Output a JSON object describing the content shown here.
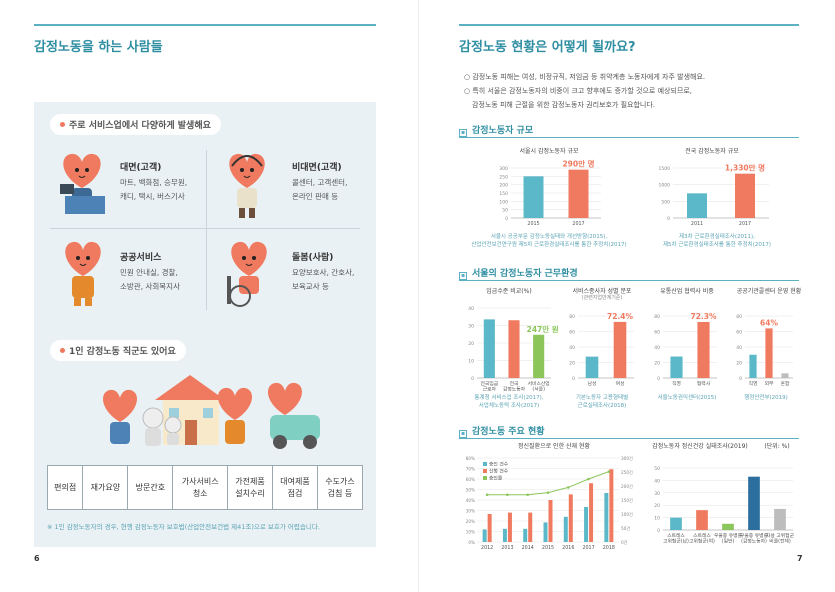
{
  "left": {
    "title": "감정노동을 하는 사람들",
    "pill1": "주로 서비스업에서 다양하게 발생해요",
    "pill2": "1인 감정노동 직군도 있어요",
    "categories": [
      {
        "title": "대면(고객)",
        "desc": "마트, 백화점, 승무원,\n캐디, 택시, 버스기사"
      },
      {
        "title": "비대면(고객)",
        "desc": "콜센터, 고객센터,\n온라인 판매 등"
      },
      {
        "title": "공공서비스",
        "desc": "민원 안내실, 경찰,\n소방관, 사회복지사"
      },
      {
        "title": "돌봄(사람)",
        "desc": "요양보호사, 간호사,\n보육교사 등"
      }
    ],
    "jobs": [
      "편의점",
      "재가요양",
      "방문간호",
      "가사서비스\n청소",
      "가전제품\n설치수리",
      "대여제품\n점검",
      "수도가스\n검침 등"
    ],
    "note": "※ 1인 감정노동자의 경우, 현행 감정노동자 보호법(산업안전보건법 제41조)으로 보호가 어렵습니다.",
    "page_number": "6"
  },
  "right": {
    "title": "감정노동 현황은 어떻게 될까요?",
    "bullets": [
      "감정노동 피해는 여성, 비정규직, 저임금 등 취약계층 노동자에게 자주 발생해요.",
      "특히 서울은 감정노동자의 비중이 크고 향후에도 증가할 것으로 예상되므로,",
      "감정노동 피해 근절을 위한 감정노동자 권리보호가 필요합니다."
    ],
    "sec1": "감정노동자 규모",
    "sec2": "서울의 감정노동자 근무환경",
    "sec3": "감정노동 주요 현황",
    "page_number": "7"
  },
  "chart_data": [
    {
      "type": "bar",
      "title": "서울시 감정노동자 규모",
      "categories": [
        "2015",
        "2017"
      ],
      "values": [
        250,
        290
      ],
      "ylim": [
        0,
        300
      ],
      "yticks": [
        "0",
        "50",
        "100",
        "150",
        "200",
        "250",
        "300"
      ],
      "annotation": "290만 명",
      "source": "서울시 공공부문 감정노동실태와 개선방향(2015),\n산업안전보건연구원 제5차 근로환경실태조사를 통한 추정치(2017)"
    },
    {
      "type": "bar",
      "title": "전국 감정노동자 규모",
      "categories": [
        "2011",
        "2017"
      ],
      "values": [
        740,
        1330
      ],
      "ylim": [
        0,
        1500
      ],
      "yticks": [
        "0",
        "500",
        "1000",
        "1500"
      ],
      "annotation": "1,330만 명",
      "source": "제3차 근로환경실태조사(2011),\n제5차 근로환경실태조사를 통한 추정치(2017)"
    },
    {
      "type": "bar",
      "title": "임금수준 비교(%)",
      "categories": [
        "전국임금\n근로자",
        "전국\n감정노동자",
        "서비스산업\n(서울)"
      ],
      "values": [
        335,
        330,
        247
      ],
      "ylim": [
        0,
        400
      ],
      "yticks": [
        "0",
        "10",
        "20",
        "30",
        "40"
      ],
      "annotation": "247만 원",
      "source": "통계청 서비스업 조사(2017),\n서업체노동력 조사(2017)"
    },
    {
      "type": "bar",
      "title": "서비스종사자 성별 분포",
      "subtitle": "(관련지업만계기준)",
      "categories": [
        "남성",
        "여성"
      ],
      "values": [
        27.6,
        72.4
      ],
      "ylim": [
        0,
        80
      ],
      "yticks": [
        "0",
        "20",
        "40",
        "60",
        "80"
      ],
      "annotation": "72.4%",
      "source": "기본노동자 고용형태별\n근로실태조사(2018)"
    },
    {
      "type": "bar",
      "title": "유통산업 협력사 비중",
      "categories": [
        "직영",
        "협력사"
      ],
      "values": [
        27.7,
        72.3
      ],
      "ylim": [
        0,
        80
      ],
      "yticks": [
        "0",
        "20",
        "40",
        "60",
        "80"
      ],
      "annotation": "72.3%",
      "source": "서울노동권익센터(2015)"
    },
    {
      "type": "bar",
      "title": "공공기관콜센터 운영 현황",
      "categories": [
        "직영",
        "외부",
        "혼합"
      ],
      "values": [
        30,
        64,
        6
      ],
      "ylim": [
        0,
        80
      ],
      "yticks": [
        "0",
        "20",
        "40",
        "60",
        "80"
      ],
      "annotation": "64%",
      "source": "행정안전부(2019)"
    },
    {
      "type": "bar",
      "title": "정신질환으로 인한 산재 현황",
      "categories": [
        "2012",
        "2013",
        "2014",
        "2015",
        "2016",
        "2017",
        "2018"
      ],
      "series": [
        {
          "name": "승인 건수",
          "values": [
            45,
            47,
            47,
            70,
            90,
            125,
            175
          ]
        },
        {
          "name": "신청 건수",
          "values": [
            100,
            105,
            105,
            150,
            170,
            210,
            260
          ]
        },
        {
          "name": "승인율",
          "values": [
            45,
            45,
            45,
            47,
            52,
            60,
            67
          ]
        }
      ],
      "yticks_left": [
        "0%",
        "10%",
        "20%",
        "30%",
        "40%",
        "50%",
        "60%",
        "70%",
        "80%"
      ],
      "yticks_right": [
        "0건",
        "50건",
        "100건",
        "150건",
        "200건",
        "250건",
        "300건"
      ],
      "legend": "top-left"
    },
    {
      "type": "bar",
      "title": "감정노동자 정신건강 실태조사(2019)",
      "unit": "(단위: %)",
      "categories": [
        "스트레스\n고위험군(남)",
        "스트레스\n고위험군(여)",
        "우울증 유병률\n(일반)",
        "우울증 유병률\n(감정노동자)",
        "자살 고위험군\n비율(전체)"
      ],
      "values": [
        10,
        16,
        5,
        43,
        17
      ],
      "ylim": [
        0,
        50
      ],
      "yticks": [
        "0",
        "10",
        "20",
        "30",
        "40",
        "50"
      ]
    }
  ]
}
